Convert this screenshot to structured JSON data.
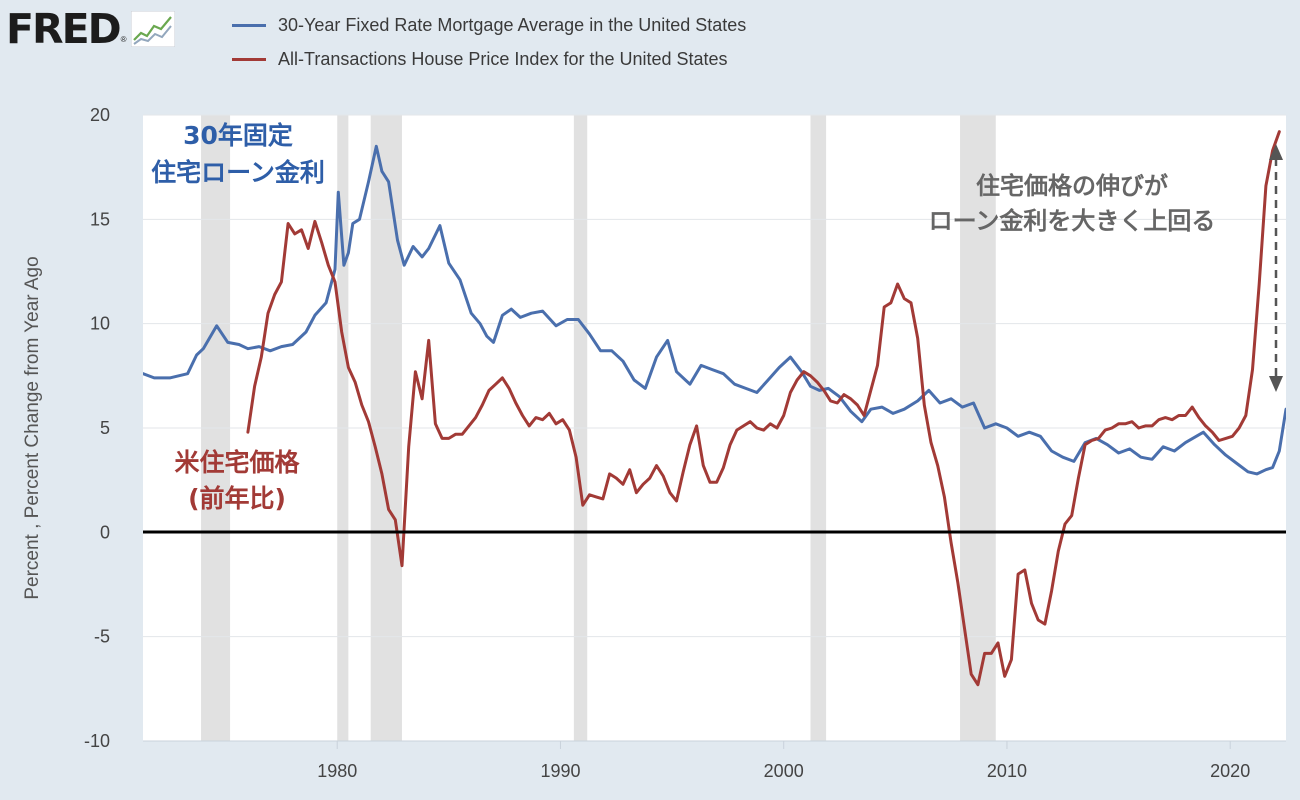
{
  "logo": {
    "text": "FRED",
    "registered": "®"
  },
  "colors": {
    "mortgage": "#4a6fad",
    "hpi": "#a23a36",
    "recession": "#e1e1e1",
    "annotation_gray": "#666666",
    "background": "#e1e9f0"
  },
  "legend": [
    {
      "label": "30-Year Fixed Rate Mortgage Average in the United States",
      "color": "#4a6fad"
    },
    {
      "label": "All-Transactions House Price Index for the United States",
      "color": "#a23a36"
    }
  ],
  "annotations": {
    "mortgage_label": [
      "30年固定",
      "住宅ローン金利"
    ],
    "hpi_label": [
      "米住宅価格",
      "(前年比)"
    ],
    "gap_label": [
      "住宅価格の伸びが",
      "ローン金利を大きく上回る"
    ]
  },
  "chart_data": {
    "type": "line",
    "title": "",
    "xlabel": "",
    "ylabel": "Percent , Percent Change from Year Ago",
    "xlim": [
      1971.3,
      2022.5
    ],
    "ylim": [
      -10,
      20
    ],
    "yticks": [
      20,
      15,
      10,
      5,
      0,
      -5,
      -10
    ],
    "ytick_labels": [
      "20",
      "15",
      "10",
      "5",
      "0",
      "-5",
      "-10"
    ],
    "xticks": [
      1980,
      1990,
      2000,
      2010,
      2020
    ],
    "xtick_labels": [
      "1980",
      "1990",
      "2000",
      "2010",
      "2020"
    ],
    "grid": "horizontal",
    "zero_line": true,
    "recessions": [
      [
        1973.9,
        1975.2
      ],
      [
        1980.0,
        1980.5
      ],
      [
        1981.5,
        1982.9
      ],
      [
        1990.6,
        1991.2
      ],
      [
        2001.2,
        2001.9
      ],
      [
        2007.9,
        2009.5
      ]
    ],
    "series": [
      {
        "name": "30-Year Fixed Rate Mortgage Average in the United States",
        "color": "#4a6fad",
        "x": [
          1971.3,
          1971.8,
          1972.5,
          1973.3,
          1973.7,
          1974.0,
          1974.6,
          1975.1,
          1975.6,
          1976.0,
          1976.5,
          1977.0,
          1977.5,
          1978.0,
          1978.6,
          1979.0,
          1979.5,
          1979.9,
          1980.05,
          1980.3,
          1980.5,
          1980.7,
          1981.0,
          1981.4,
          1981.75,
          1982.0,
          1982.3,
          1982.7,
          1983.0,
          1983.4,
          1983.8,
          1984.1,
          1984.6,
          1985.0,
          1985.5,
          1986.0,
          1986.4,
          1986.7,
          1987.0,
          1987.4,
          1987.8,
          1988.2,
          1988.7,
          1989.2,
          1989.8,
          1990.3,
          1990.8,
          1991.3,
          1991.8,
          1992.3,
          1992.8,
          1993.3,
          1993.8,
          1994.3,
          1994.8,
          1995.2,
          1995.8,
          1996.3,
          1996.8,
          1997.3,
          1997.8,
          1998.3,
          1998.8,
          1999.3,
          1999.8,
          2000.3,
          2000.8,
          2001.2,
          2001.6,
          2002.0,
          2002.5,
          2003.0,
          2003.5,
          2003.9,
          2004.4,
          2004.9,
          2005.4,
          2006.0,
          2006.5,
          2007.0,
          2007.5,
          2008.0,
          2008.5,
          2009.0,
          2009.5,
          2010.0,
          2010.5,
          2011.0,
          2011.5,
          2012.0,
          2012.5,
          2013.0,
          2013.5,
          2014.0,
          2014.5,
          2015.0,
          2015.5,
          2016.0,
          2016.5,
          2017.0,
          2017.5,
          2018.0,
          2018.8,
          2019.3,
          2019.8,
          2020.3,
          2020.8,
          2021.2,
          2021.6,
          2021.9,
          2022.2,
          2022.5
        ],
        "y": [
          7.6,
          7.4,
          7.4,
          7.6,
          8.5,
          8.8,
          9.9,
          9.1,
          9.0,
          8.8,
          8.9,
          8.7,
          8.9,
          9.0,
          9.6,
          10.4,
          11.0,
          12.6,
          16.3,
          12.8,
          13.4,
          14.8,
          15.0,
          16.8,
          18.5,
          17.3,
          16.8,
          14.0,
          12.8,
          13.7,
          13.2,
          13.6,
          14.7,
          12.9,
          12.1,
          10.5,
          10.0,
          9.4,
          9.1,
          10.4,
          10.7,
          10.3,
          10.5,
          10.6,
          9.9,
          10.2,
          10.2,
          9.5,
          8.7,
          8.7,
          8.2,
          7.3,
          6.9,
          8.4,
          9.2,
          7.7,
          7.1,
          8.0,
          7.8,
          7.6,
          7.1,
          6.9,
          6.7,
          7.3,
          7.9,
          8.4,
          7.7,
          7.0,
          6.8,
          6.9,
          6.5,
          5.8,
          5.3,
          5.9,
          6.0,
          5.7,
          5.9,
          6.3,
          6.8,
          6.2,
          6.4,
          6.0,
          6.2,
          5.0,
          5.2,
          5.0,
          4.6,
          4.8,
          4.6,
          3.9,
          3.6,
          3.4,
          4.3,
          4.5,
          4.2,
          3.8,
          4.0,
          3.6,
          3.5,
          4.1,
          3.9,
          4.3,
          4.8,
          4.2,
          3.7,
          3.3,
          2.9,
          2.8,
          3.0,
          3.1,
          3.9,
          5.9
        ]
      },
      {
        "name": "All-Transactions House Price Index for the United States",
        "color": "#a23a36",
        "x": [
          1976.0,
          1976.3,
          1976.6,
          1976.9,
          1977.2,
          1977.5,
          1977.8,
          1978.1,
          1978.4,
          1978.7,
          1979.0,
          1979.3,
          1979.6,
          1979.9,
          1980.2,
          1980.5,
          1980.8,
          1981.1,
          1981.4,
          1981.7,
          1982.0,
          1982.3,
          1982.6,
          1982.9,
          1983.2,
          1983.5,
          1983.8,
          1984.1,
          1984.4,
          1984.7,
          1985.0,
          1985.3,
          1985.6,
          1985.9,
          1986.2,
          1986.5,
          1986.8,
          1987.1,
          1987.4,
          1987.7,
          1988.0,
          1988.3,
          1988.6,
          1988.9,
          1989.2,
          1989.5,
          1989.8,
          1990.1,
          1990.4,
          1990.7,
          1991.0,
          1991.3,
          1991.6,
          1991.9,
          1992.2,
          1992.5,
          1992.8,
          1993.1,
          1993.4,
          1993.7,
          1994.0,
          1994.3,
          1994.6,
          1994.9,
          1995.2,
          1995.5,
          1995.8,
          1996.1,
          1996.4,
          1996.7,
          1997.0,
          1997.3,
          1997.6,
          1997.9,
          1998.2,
          1998.5,
          1998.8,
          1999.1,
          1999.4,
          1999.7,
          2000.0,
          2000.3,
          2000.6,
          2000.9,
          2001.2,
          2001.5,
          2001.8,
          2002.1,
          2002.4,
          2002.7,
          2003.0,
          2003.3,
          2003.6,
          2003.9,
          2004.2,
          2004.5,
          2004.8,
          2005.1,
          2005.4,
          2005.7,
          2006.0,
          2006.3,
          2006.6,
          2006.9,
          2007.2,
          2007.5,
          2007.8,
          2008.1,
          2008.4,
          2008.7,
          2009.0,
          2009.3,
          2009.6,
          2009.9,
          2010.2,
          2010.5,
          2010.8,
          2011.1,
          2011.4,
          2011.7,
          2012.0,
          2012.3,
          2012.6,
          2012.9,
          2013.2,
          2013.5,
          2013.8,
          2014.1,
          2014.4,
          2014.7,
          2015.0,
          2015.3,
          2015.6,
          2015.9,
          2016.2,
          2016.5,
          2016.8,
          2017.1,
          2017.4,
          2017.7,
          2018.0,
          2018.3,
          2018.6,
          2018.9,
          2019.2,
          2019.5,
          2019.8,
          2020.1,
          2020.4,
          2020.7,
          2021.0,
          2021.3,
          2021.6,
          2021.9,
          2022.2
        ],
        "y": [
          4.8,
          7.0,
          8.4,
          10.5,
          11.4,
          12.0,
          14.8,
          14.3,
          14.5,
          13.6,
          14.9,
          13.9,
          12.8,
          12.0,
          9.6,
          7.9,
          7.2,
          6.1,
          5.3,
          4.1,
          2.8,
          1.1,
          0.6,
          -1.6,
          4.1,
          7.7,
          6.4,
          9.2,
          5.2,
          4.5,
          4.5,
          4.7,
          4.7,
          5.1,
          5.5,
          6.1,
          6.8,
          7.1,
          7.4,
          6.9,
          6.2,
          5.6,
          5.1,
          5.5,
          5.4,
          5.7,
          5.2,
          5.4,
          4.9,
          3.6,
          1.3,
          1.8,
          1.7,
          1.6,
          2.8,
          2.6,
          2.3,
          3.0,
          1.9,
          2.3,
          2.6,
          3.2,
          2.7,
          1.9,
          1.5,
          2.9,
          4.2,
          5.1,
          3.2,
          2.4,
          2.4,
          3.1,
          4.2,
          4.9,
          5.1,
          5.3,
          5.0,
          4.9,
          5.2,
          5.0,
          5.6,
          6.7,
          7.3,
          7.7,
          7.5,
          7.2,
          6.8,
          6.3,
          6.2,
          6.6,
          6.4,
          6.1,
          5.6,
          6.8,
          8.0,
          10.8,
          11.0,
          11.9,
          11.2,
          11.0,
          9.3,
          6.1,
          4.3,
          3.2,
          1.7,
          -0.5,
          -2.4,
          -4.6,
          -6.8,
          -7.3,
          -5.8,
          -5.8,
          -5.3,
          -6.9,
          -6.1,
          -2.0,
          -1.8,
          -3.4,
          -4.2,
          -4.4,
          -2.8,
          -0.9,
          0.4,
          0.8,
          2.6,
          4.2,
          4.4,
          4.5,
          4.9,
          5.0,
          5.2,
          5.2,
          5.3,
          5.0,
          5.1,
          5.1,
          5.4,
          5.5,
          5.4,
          5.6,
          5.6,
          6.0,
          5.5,
          5.1,
          4.8,
          4.4,
          4.5,
          4.6,
          5.0,
          5.6,
          7.8,
          11.9,
          16.6,
          18.3,
          19.2
        ]
      }
    ]
  }
}
